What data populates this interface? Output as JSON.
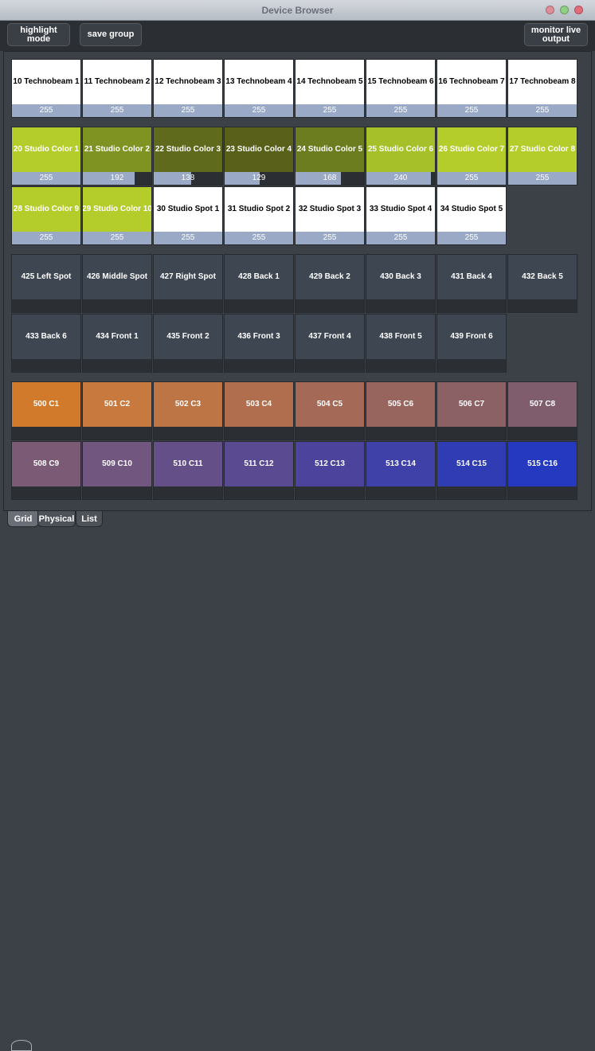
{
  "window": {
    "title": "Device Browser"
  },
  "toolbar": {
    "highlight_label": "highlight mode",
    "save_label": "save group",
    "monitor_label": "monitor live output"
  },
  "colors": {
    "white_tile": "#ffffff",
    "lime": "#b5cd2b",
    "olive_192": "#7f9322",
    "olive_138": "#5f6a1d",
    "olive_129": "#58601a",
    "olive_168": "#6c7d1f",
    "olive_240": "#a6c02a",
    "dark_tile": "#3e4651",
    "level_bar": "#9aa9c6"
  },
  "sections": [
    {
      "name": "technobeams",
      "rows": [
        [
          {
            "label": "10 Technobeam 1",
            "value": "255",
            "level": 1.0,
            "bg": "#ffffff",
            "fg": "#000000"
          },
          {
            "label": "11 Technobeam 2",
            "value": "255",
            "level": 1.0,
            "bg": "#ffffff",
            "fg": "#000000"
          },
          {
            "label": "12 Technobeam 3",
            "value": "255",
            "level": 1.0,
            "bg": "#ffffff",
            "fg": "#000000"
          },
          {
            "label": "13 Technobeam 4",
            "value": "255",
            "level": 1.0,
            "bg": "#ffffff",
            "fg": "#000000"
          },
          {
            "label": "14 Technobeam 5",
            "value": "255",
            "level": 1.0,
            "bg": "#ffffff",
            "fg": "#000000"
          },
          {
            "label": "15 Technobeam 6",
            "value": "255",
            "level": 1.0,
            "bg": "#ffffff",
            "fg": "#000000"
          },
          {
            "label": "16 Technobeam 7",
            "value": "255",
            "level": 1.0,
            "bg": "#ffffff",
            "fg": "#000000"
          },
          {
            "label": "17 Technobeam 8",
            "value": "255",
            "level": 1.0,
            "bg": "#ffffff",
            "fg": "#000000"
          }
        ]
      ]
    },
    {
      "name": "studio",
      "rows": [
        [
          {
            "label": "20 Studio Color 1",
            "value": "255",
            "level": 1.0,
            "bg": "#b5cd2b",
            "fg": "#ffffff"
          },
          {
            "label": "21 Studio Color 2",
            "value": "192",
            "level": 0.753,
            "bg": "#7f9322",
            "fg": "#ffffff"
          },
          {
            "label": "22 Studio Color 3",
            "value": "138",
            "level": 0.541,
            "bg": "#5f6a1d",
            "fg": "#ffffff"
          },
          {
            "label": "23 Studio Color 4",
            "value": "129",
            "level": 0.506,
            "bg": "#58601a",
            "fg": "#ffffff"
          },
          {
            "label": "24 Studio Color 5",
            "value": "168",
            "level": 0.659,
            "bg": "#6c7d1f",
            "fg": "#ffffff"
          },
          {
            "label": "25 Studio Color 6",
            "value": "240",
            "level": 0.941,
            "bg": "#a6c02a",
            "fg": "#ffffff"
          },
          {
            "label": "26 Studio Color 7",
            "value": "255",
            "level": 1.0,
            "bg": "#b5cd2b",
            "fg": "#ffffff"
          },
          {
            "label": "27 Studio Color 8",
            "value": "255",
            "level": 1.0,
            "bg": "#b5cd2b",
            "fg": "#ffffff"
          }
        ],
        [
          {
            "label": "28 Studio Color 9",
            "value": "255",
            "level": 1.0,
            "bg": "#b5cd2b",
            "fg": "#ffffff"
          },
          {
            "label": "29 Studio Color 10",
            "value": "255",
            "level": 1.0,
            "bg": "#b5cd2b",
            "fg": "#ffffff"
          },
          {
            "label": "30 Studio Spot 1",
            "value": "255",
            "level": 1.0,
            "bg": "#ffffff",
            "fg": "#000000"
          },
          {
            "label": "31 Studio Spot 2",
            "value": "255",
            "level": 1.0,
            "bg": "#ffffff",
            "fg": "#000000"
          },
          {
            "label": "32 Studio Spot 3",
            "value": "255",
            "level": 1.0,
            "bg": "#ffffff",
            "fg": "#000000"
          },
          {
            "label": "33 Studio Spot 4",
            "value": "255",
            "level": 1.0,
            "bg": "#ffffff",
            "fg": "#000000"
          },
          {
            "label": "34 Studio Spot 5",
            "value": "255",
            "level": 1.0,
            "bg": "#ffffff",
            "fg": "#000000"
          }
        ]
      ]
    },
    {
      "name": "house",
      "rows": [
        [
          {
            "label": "425 Left Spot",
            "value": "",
            "level": 0,
            "bg": "#3e4651",
            "fg": "#ffffff"
          },
          {
            "label": "426 Middle Spot",
            "value": "",
            "level": 0,
            "bg": "#3e4651",
            "fg": "#ffffff"
          },
          {
            "label": "427 Right Spot",
            "value": "",
            "level": 0,
            "bg": "#3e4651",
            "fg": "#ffffff"
          },
          {
            "label": "428 Back 1",
            "value": "",
            "level": 0,
            "bg": "#3e4651",
            "fg": "#ffffff"
          },
          {
            "label": "429 Back 2",
            "value": "",
            "level": 0,
            "bg": "#3e4651",
            "fg": "#ffffff"
          },
          {
            "label": "430 Back 3",
            "value": "",
            "level": 0,
            "bg": "#3e4651",
            "fg": "#ffffff"
          },
          {
            "label": "431 Back 4",
            "value": "",
            "level": 0,
            "bg": "#3e4651",
            "fg": "#ffffff"
          },
          {
            "label": "432 Back 5",
            "value": "",
            "level": 0,
            "bg": "#3e4651",
            "fg": "#ffffff"
          }
        ],
        [
          {
            "label": "433 Back 6",
            "value": "",
            "level": 0,
            "bg": "#3e4651",
            "fg": "#ffffff"
          },
          {
            "label": "434 Front 1",
            "value": "",
            "level": 0,
            "bg": "#3e4651",
            "fg": "#ffffff"
          },
          {
            "label": "435 Front 2",
            "value": "",
            "level": 0,
            "bg": "#3e4651",
            "fg": "#ffffff"
          },
          {
            "label": "436 Front 3",
            "value": "",
            "level": 0,
            "bg": "#3e4651",
            "fg": "#ffffff"
          },
          {
            "label": "437 Front 4",
            "value": "",
            "level": 0,
            "bg": "#3e4651",
            "fg": "#ffffff"
          },
          {
            "label": "438 Front 5",
            "value": "",
            "level": 0,
            "bg": "#3e4651",
            "fg": "#ffffff"
          },
          {
            "label": "439 Front 6",
            "value": "",
            "level": 0,
            "bg": "#3e4651",
            "fg": "#ffffff"
          }
        ]
      ]
    },
    {
      "name": "color-wash",
      "rows": [
        [
          {
            "label": "500 C1",
            "value": "",
            "level": 0,
            "bg": "#d27a2c",
            "fg": "#ffffff"
          },
          {
            "label": "501 C2",
            "value": "",
            "level": 0,
            "bg": "#c8793d",
            "fg": "#ffffff"
          },
          {
            "label": "502 C3",
            "value": "",
            "level": 0,
            "bg": "#bd7545",
            "fg": "#ffffff"
          },
          {
            "label": "503 C4",
            "value": "",
            "level": 0,
            "bg": "#b06e4e",
            "fg": "#ffffff"
          },
          {
            "label": "504 C5",
            "value": "",
            "level": 0,
            "bg": "#a46a57",
            "fg": "#ffffff"
          },
          {
            "label": "505 C6",
            "value": "",
            "level": 0,
            "bg": "#98655e",
            "fg": "#ffffff"
          },
          {
            "label": "506 C7",
            "value": "",
            "level": 0,
            "bg": "#8c6166",
            "fg": "#ffffff"
          },
          {
            "label": "507 C8",
            "value": "",
            "level": 0,
            "bg": "#805d6c",
            "fg": "#ffffff"
          }
        ],
        [
          {
            "label": "508 C9",
            "value": "",
            "level": 0,
            "bg": "#7a5a74",
            "fg": "#ffffff"
          },
          {
            "label": "509 C10",
            "value": "",
            "level": 0,
            "bg": "#715680",
            "fg": "#ffffff"
          },
          {
            "label": "510 C11",
            "value": "",
            "level": 0,
            "bg": "#654f88",
            "fg": "#ffffff"
          },
          {
            "label": "511 C12",
            "value": "",
            "level": 0,
            "bg": "#594a92",
            "fg": "#ffffff"
          },
          {
            "label": "512 C13",
            "value": "",
            "level": 0,
            "bg": "#4c449c",
            "fg": "#ffffff"
          },
          {
            "label": "513 C14",
            "value": "",
            "level": 0,
            "bg": "#3f40a8",
            "fg": "#ffffff"
          },
          {
            "label": "514 C15",
            "value": "",
            "level": 0,
            "bg": "#303cb4",
            "fg": "#ffffff"
          },
          {
            "label": "515 C16",
            "value": "",
            "level": 0,
            "bg": "#2539c0",
            "fg": "#ffffff"
          }
        ]
      ]
    }
  ],
  "tabs": [
    {
      "label": "Grid",
      "active": true
    },
    {
      "label": "Physical",
      "active": false
    },
    {
      "label": "List",
      "active": false
    }
  ]
}
